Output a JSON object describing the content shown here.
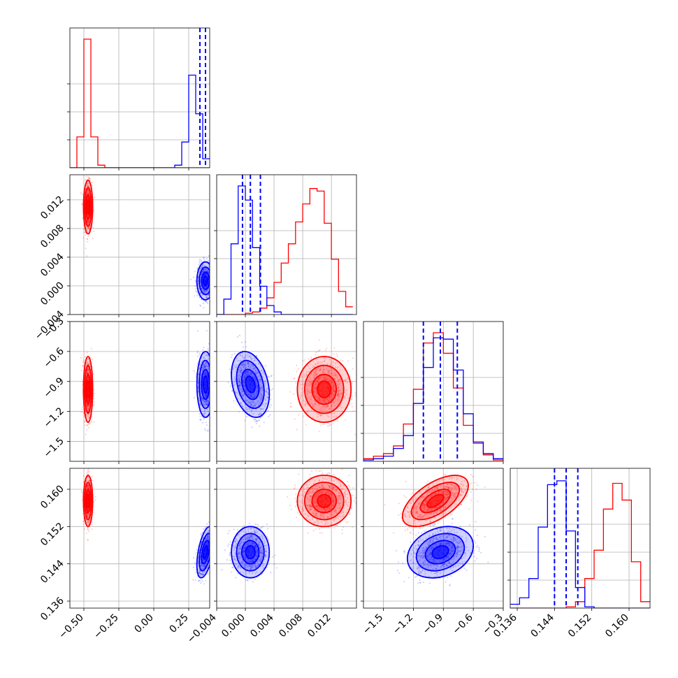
{
  "colors": {
    "red": "#ff0000",
    "blue": "#0000ff",
    "grid": "#b0b0b0",
    "frame": "#000000"
  },
  "chart_data": {
    "type": "corner",
    "grid": true,
    "parameters": [
      {
        "ticks": [
          "−0.50",
          "−0.25",
          "0.00",
          "0.25"
        ],
        "tick_values": [
          -0.5,
          -0.25,
          0.0,
          0.25
        ],
        "range": [
          -0.6,
          0.4
        ]
      },
      {
        "ticks": [
          "−0.004",
          "0.000",
          "0.004",
          "0.008",
          "0.012"
        ],
        "tick_values": [
          -0.004,
          0.0,
          0.004,
          0.008,
          0.012
        ],
        "range": [
          -0.004,
          0.0155
        ]
      },
      {
        "ticks": [
          "−1.5",
          "−1.2",
          "−0.9",
          "−0.6",
          "−0.3"
        ],
        "tick_values": [
          -1.5,
          -1.2,
          -0.9,
          -0.6,
          -0.3
        ],
        "range": [
          -1.7,
          -0.3
        ]
      },
      {
        "ticks": [
          "0.136",
          "0.144",
          "0.152",
          "0.160"
        ],
        "tick_values": [
          0.136,
          0.144,
          0.152,
          0.16
        ],
        "range": [
          0.1345,
          0.1645
        ]
      }
    ],
    "y_tick_labels": {
      "1": [
        "−0.004",
        "0.000",
        "0.004",
        "0.008",
        "0.012"
      ],
      "2": [
        "−1.5",
        "−1.2",
        "−0.9",
        "−0.6",
        "−0.3"
      ],
      "3": [
        "0.136",
        "0.144",
        "0.152",
        "0.160"
      ]
    },
    "series": [
      {
        "color": "red",
        "mean": [
          -0.47,
          0.011,
          -0.98,
          0.1575
        ],
        "std": [
          0.015,
          0.0017,
          0.15,
          0.0025
        ],
        "corr": {
          "2-3": 0.6
        }
      },
      {
        "color": "blue",
        "mean": [
          0.37,
          0.0007,
          -0.93,
          0.1465
        ],
        "std": [
          0.028,
          0.0012,
          0.15,
          0.0025
        ],
        "corr": {
          "0-3": 0.5,
          "1-2": -0.3,
          "2-3": 0.25
        }
      }
    ],
    "quantile_lines": {
      "color": "blue",
      "values": [
        [
          0.33,
          0.37,
          0.405
        ],
        [
          -0.0004,
          0.0007,
          0.0021
        ],
        [
          -1.1,
          -0.93,
          -0.76
        ],
        [
          0.144,
          0.1465,
          0.149
        ]
      ]
    },
    "histograms": [
      {
        "edges": [
          -0.6,
          -0.55,
          -0.5,
          -0.45,
          -0.4,
          -0.35,
          -0.3,
          -0.25,
          -0.2,
          -0.15,
          -0.1,
          -0.05,
          0.0,
          0.05,
          0.1,
          0.15,
          0.2,
          0.25,
          0.3,
          0.35,
          0.4
        ],
        "red": [
          0,
          0.24,
          1.0,
          0.24,
          0.02,
          0,
          0,
          0,
          0,
          0,
          0,
          0,
          0,
          0,
          0,
          0,
          0,
          0,
          0,
          0
        ],
        "blue": [
          0,
          0,
          0,
          0,
          0,
          0,
          0,
          0,
          0,
          0,
          0,
          0,
          0,
          0,
          0,
          0.02,
          0.2,
          0.72,
          0.42,
          0.07
        ]
      },
      {
        "edges": [
          -0.004,
          -0.003,
          -0.002,
          -0.001,
          0.0,
          0.001,
          0.002,
          0.003,
          0.004,
          0.005,
          0.006,
          0.007,
          0.008,
          0.009,
          0.01,
          0.011,
          0.012,
          0.013,
          0.014,
          0.015
        ],
        "red": [
          0,
          0,
          0,
          0,
          0.01,
          0.02,
          0.05,
          0.13,
          0.25,
          0.4,
          0.55,
          0.72,
          0.86,
          0.98,
          0.96,
          0.71,
          0.43,
          0.18,
          0.06
        ],
        "blue": [
          0,
          0.12,
          0.55,
          1.0,
          0.89,
          0.52,
          0.22,
          0.07,
          0.02,
          0,
          0,
          0,
          0,
          0,
          0,
          0,
          0,
          0,
          0
        ]
      },
      {
        "edges": [
          -1.7,
          -1.6,
          -1.5,
          -1.4,
          -1.3,
          -1.2,
          -1.1,
          -1.0,
          -0.9,
          -0.8,
          -0.7,
          -0.6,
          -0.5,
          -0.4,
          -0.3
        ],
        "red": [
          0.02,
          0.04,
          0.06,
          0.12,
          0.29,
          0.56,
          0.92,
          1.0,
          0.84,
          0.57,
          0.28,
          0.14,
          0.05,
          0.01
        ],
        "blue": [
          0.01,
          0.02,
          0.04,
          0.1,
          0.2,
          0.45,
          0.73,
          0.96,
          0.95,
          0.71,
          0.37,
          0.15,
          0.06,
          0.02
        ]
      },
      {
        "edges": [
          0.1345,
          0.1365,
          0.1385,
          0.1405,
          0.1425,
          0.1445,
          0.1465,
          0.1485,
          0.1505,
          0.1525,
          0.1545,
          0.1565,
          0.1585,
          0.1605,
          0.1625,
          0.1645
        ],
        "red": [
          0,
          0,
          0,
          0,
          0,
          0,
          0.01,
          0.05,
          0.23,
          0.45,
          0.77,
          0.97,
          0.84,
          0.36,
          0.05
        ],
        "blue": [
          0.03,
          0.08,
          0.23,
          0.63,
          0.96,
          0.99,
          0.6,
          0.16,
          0.01,
          0,
          0,
          0,
          0,
          0,
          0
        ]
      }
    ]
  }
}
